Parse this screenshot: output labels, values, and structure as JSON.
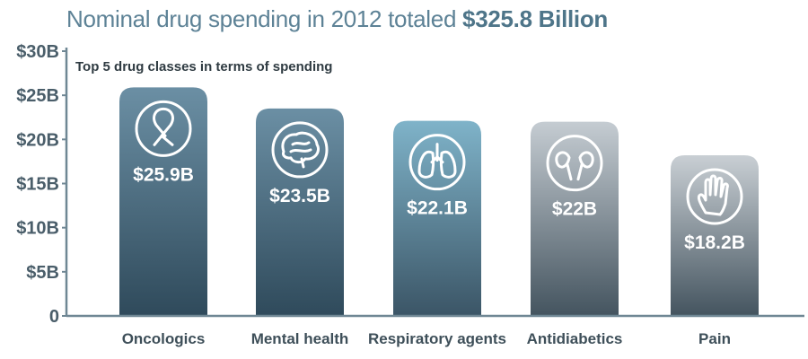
{
  "title": {
    "prefix": "Nominal drug spending in 2012 totaled ",
    "amount": "$325.8 Billion"
  },
  "chart_data": {
    "type": "bar",
    "title": "Nominal drug spending in 2012 totaled $325.8 Billion",
    "subtitle": "Top 5 drug classes in terms of spending",
    "categories": [
      "Oncologics",
      "Mental health",
      "Respiratory agents",
      "Antidiabetics",
      "Pain"
    ],
    "values": [
      25.9,
      23.5,
      22.1,
      22.0,
      18.2
    ],
    "value_labels": [
      "$25.9B",
      "$23.5B",
      "$22.1B",
      "$22B",
      "$18.2B"
    ],
    "icons": [
      "ribbon-icon",
      "brain-icon",
      "lungs-icon",
      "kidneys-icon",
      "hand-icon"
    ],
    "bar_colors": [
      [
        "#6b8fa4",
        "#2f4a5b"
      ],
      [
        "#6b8fa4",
        "#2f4a5b"
      ],
      [
        "#7fb3c9",
        "#3b5566"
      ],
      [
        "#c5ccd2",
        "#44545f"
      ],
      [
        "#c9cfd4",
        "#44545f"
      ]
    ],
    "yticks": [
      "0",
      "$5B",
      "$10B",
      "$15B",
      "$20B",
      "$25B",
      "$30B"
    ],
    "ytick_values": [
      0,
      5,
      10,
      15,
      20,
      25,
      30
    ],
    "ylim": [
      0,
      30
    ],
    "xlabel": "",
    "ylabel": "",
    "unit": "Billion USD"
  }
}
